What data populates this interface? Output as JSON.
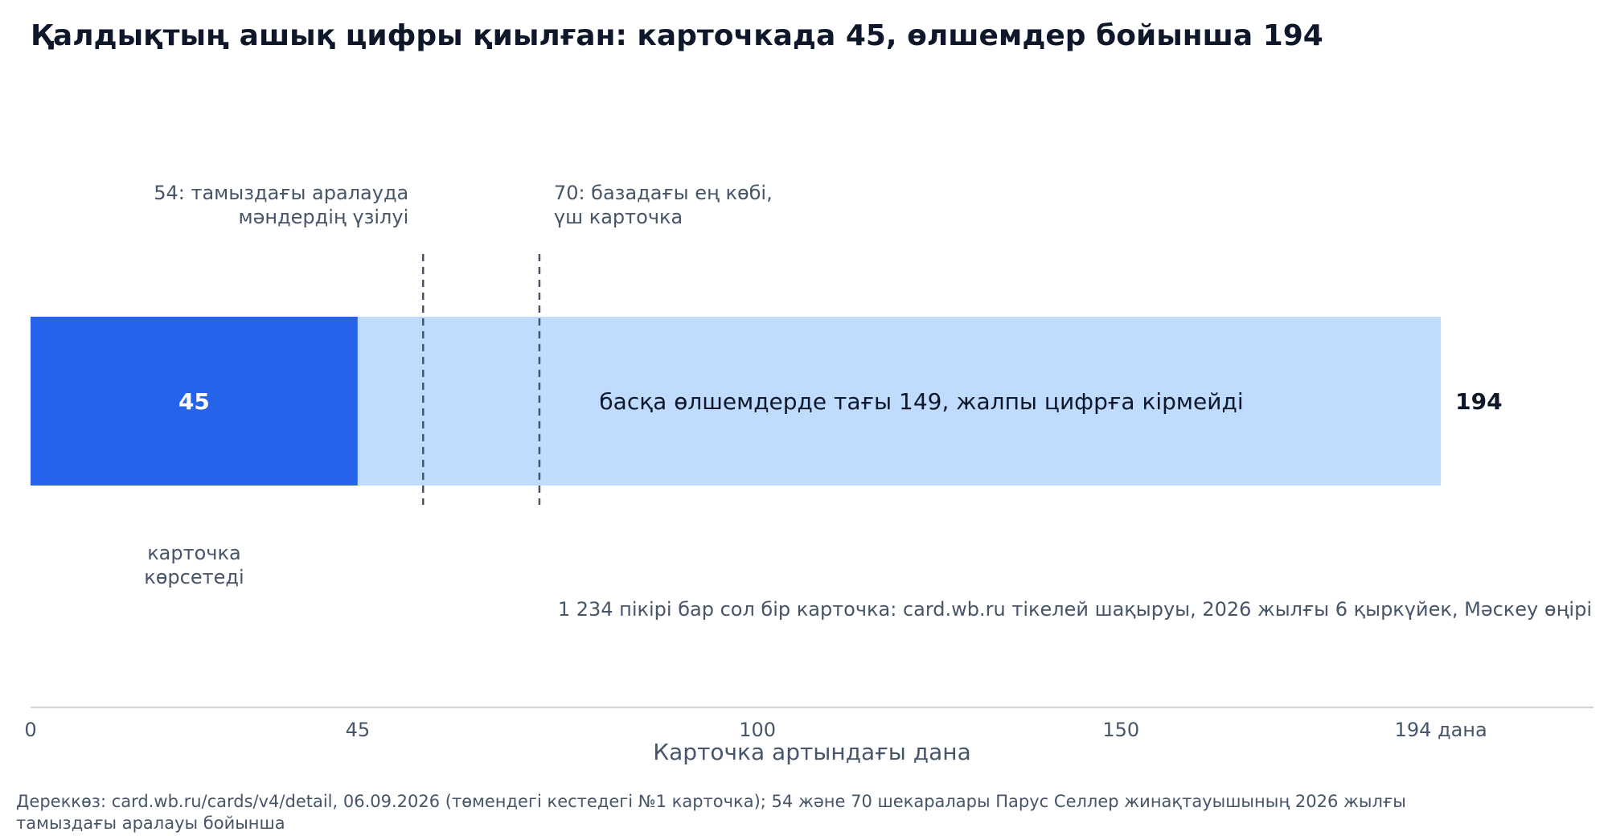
{
  "chart_data": {
    "type": "bar",
    "title": "Қалдықтың ашық цифры қиылған: карточкада 45, өлшемдер бойынша 194",
    "segments": [
      {
        "value": 45,
        "label": "45",
        "color": "#2563eb"
      },
      {
        "value": 149,
        "label": "басқа өлшемдерде тағы 149, жалпы цифрға кірмейді",
        "color": "#bfdbfe"
      }
    ],
    "total": 194,
    "total_label": "194",
    "reference_lines": [
      {
        "value": 54,
        "lines": [
          "54: тамыздағы аралауда",
          "мәндердің үзілуі"
        ]
      },
      {
        "value": 70,
        "lines": [
          "70: базадағы ең көбі,",
          "үш карточка"
        ]
      }
    ],
    "below_first_segment": [
      "карточка",
      "көрсетеді"
    ],
    "note": "1 234 пікірі бар сол бір карточка: card.wb.ru тікелей шақыруы, 2026 жылғы 6 қыркүйек, Мәскеу өңірі",
    "x_ticks": [
      {
        "value": 0,
        "label": "0"
      },
      {
        "value": 45,
        "label": "45"
      },
      {
        "value": 100,
        "label": "100"
      },
      {
        "value": 150,
        "label": "150"
      },
      {
        "value": 194,
        "label": "194 дана"
      }
    ],
    "xlabel": "Карточка артындағы дана",
    "xlim": [
      0,
      215
    ],
    "source_lines": [
      "Дереккөз: card.wb.ru/cards/v4/detail, 06.09.2026 (төмендегі кестедегі №1 карточка); 54 және 70 шекаралары Парус Селлер жинақтауышының 2026 жылғы",
      "тамыздағы аралауы бойынша"
    ],
    "colors": {
      "dashed_line": "#475569",
      "axis": "#d1d5db"
    }
  }
}
